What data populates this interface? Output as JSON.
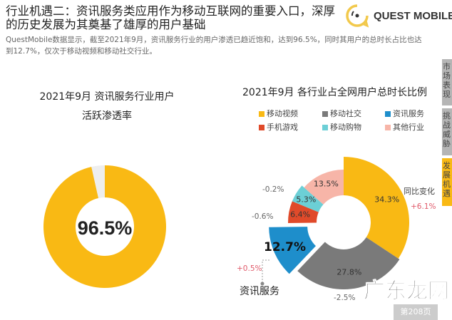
{
  "header": {
    "title": "行业机遇二：资讯服务类应用作为移动互联网的重要入口，深厚的历史发展为其奠基了雄厚的用户基础",
    "subtitle": "QuestMobile数据显示，截至2021年9月，资讯服务行业的用户渗透已趋近饱和，达到96.5%，同时其用户的总时长占比也达到12.7%，仅次于移动视频和移动社交行业。",
    "logo": "QUEST MOBILE",
    "logo_icon": "quest-mobile-logo-icon"
  },
  "side_tabs": [
    {
      "label": "市场表现",
      "active": false
    },
    {
      "label": "挑战威胁",
      "active": false
    },
    {
      "label": "发展机遇",
      "active": true
    }
  ],
  "colors": {
    "yellow": "#F9B914",
    "gray": "#7a7a7a",
    "blue": "#1E8ECB",
    "red": "#E04A2A",
    "teal": "#6CCFD6",
    "pink": "#F7B5A8",
    "positive": "#E05A6A",
    "tab_active": "#F9B914",
    "tab_inactive": "#b5b5b5"
  },
  "chart_data": [
    {
      "type": "pie",
      "title": "2021年9月 资讯服务行业用户 活跃渗透率",
      "title_lines": [
        "2021年9月 资讯服务行业用户",
        "活跃渗透率"
      ],
      "values": [
        96.5,
        3.5
      ],
      "center_label": "96.5%"
    },
    {
      "type": "pie",
      "title": "2021年9月 各行业占全网用户总时长比例",
      "legend_position": "top",
      "categories": [
        "移动视频",
        "移动社交",
        "资讯服务",
        "手机游戏",
        "移动购物",
        "其他行业"
      ],
      "values": [
        34.3,
        27.8,
        12.7,
        6.4,
        5.3,
        13.5
      ],
      "labels": [
        "34.3%",
        "27.8%",
        "12.7%",
        "6.4%",
        "5.3%",
        "13.5%"
      ],
      "yoy_change": [
        "+6.1%",
        "-2.5%",
        "+0.5%",
        "-0.6%",
        "-0.2%",
        ""
      ],
      "yoy_title": "同比变化",
      "highlight_label": "资讯服务",
      "highlight": "资讯服务"
    }
  ],
  "footer": {
    "page": "第208页",
    "watermark": "广东龙网"
  }
}
